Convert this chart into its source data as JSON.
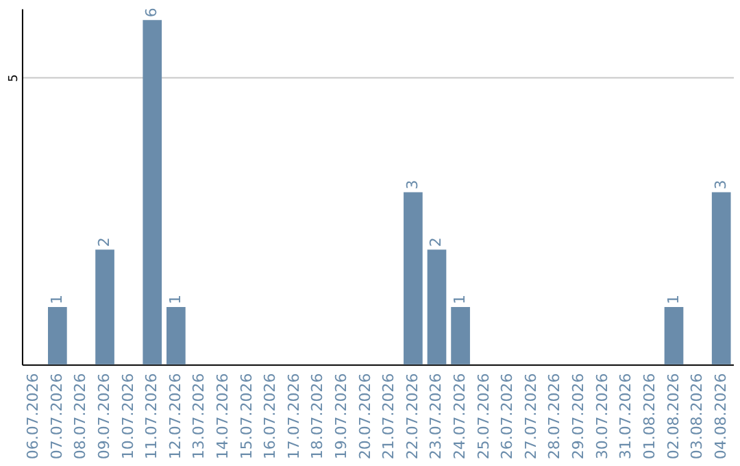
{
  "chart_data": {
    "type": "bar",
    "categories": [
      "06.07.2026",
      "07.07.2026",
      "08.07.2026",
      "09.07.2026",
      "10.07.2026",
      "11.07.2026",
      "12.07.2026",
      "13.07.2026",
      "14.07.2026",
      "15.07.2026",
      "16.07.2026",
      "17.07.2026",
      "18.07.2026",
      "19.07.2026",
      "20.07.2026",
      "21.07.2026",
      "22.07.2026",
      "23.07.2026",
      "24.07.2026",
      "25.07.2026",
      "26.07.2026",
      "27.07.2026",
      "28.07.2026",
      "29.07.2026",
      "30.07.2026",
      "31.07.2026",
      "01.08.2026",
      "02.08.2026",
      "03.08.2026",
      "04.08.2026"
    ],
    "values": [
      null,
      1,
      null,
      2,
      null,
      6,
      1,
      null,
      null,
      null,
      null,
      null,
      null,
      null,
      null,
      null,
      3,
      2,
      1,
      null,
      null,
      null,
      null,
      null,
      null,
      null,
      null,
      1,
      null,
      3
    ],
    "color": "#6a8cab",
    "ylim": [
      0,
      6.2
    ],
    "yticks": [
      5
    ],
    "grid": "y",
    "data_labels": true
  }
}
